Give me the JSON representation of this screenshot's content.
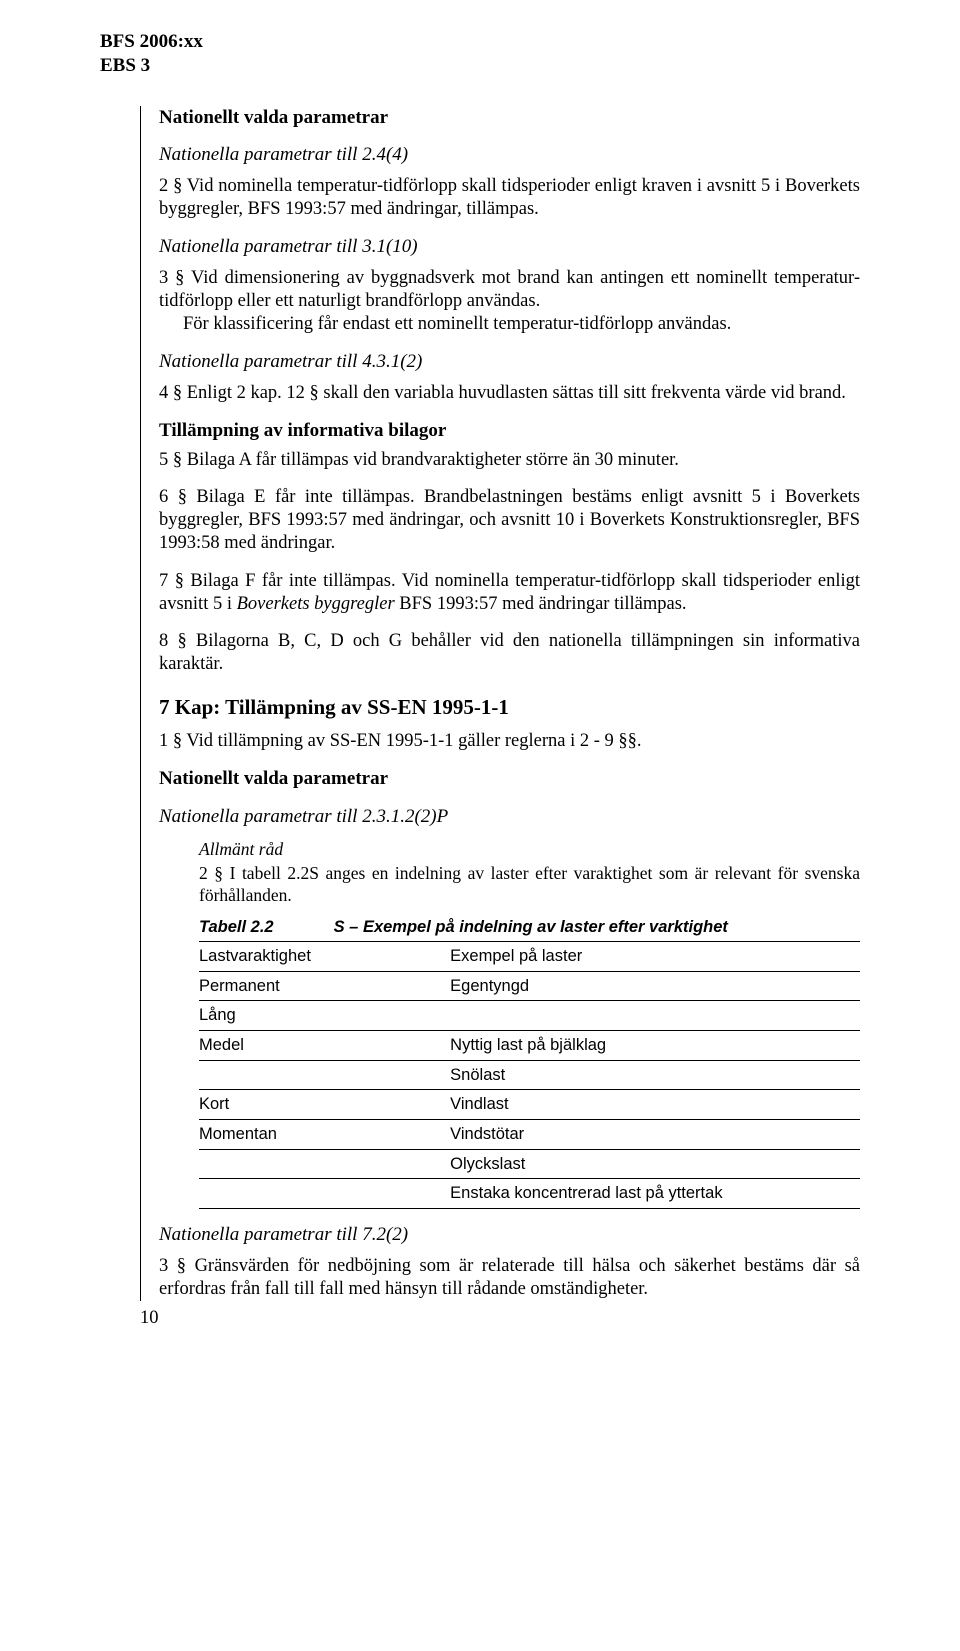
{
  "header": {
    "line1": "BFS 2006:xx",
    "line2": "EBS 3"
  },
  "sec1": {
    "title": "Nationellt valda parametrar",
    "sub1": "Nationella parametrar till 2.4(4)",
    "p1": "2 §   Vid nominella temperatur-tidförlopp skall tidsperioder enligt kraven i avsnitt 5 i Boverkets byggregler, BFS 1993:57 med ändringar, tillämpas.",
    "sub2": "Nationella parametrar till 3.1(10)",
    "p2a": "3 §   Vid dimensionering av byggnadsverk mot brand kan antingen ett nominellt temperatur-tidförlopp eller ett naturligt brandförlopp användas.",
    "p2b": "För klassificering får endast ett nominellt temperatur-tidförlopp användas.",
    "sub3": "Nationella parametrar till 4.3.1(2)",
    "p3": "4 §   Enligt 2 kap. 12 § skall den variabla huvudlasten sättas till sitt frekventa värde vid brand.",
    "bilagor_title": "Tillämpning av informativa bilagor",
    "p4": "5 §   Bilaga A får tillämpas vid brandvaraktigheter större än 30 minuter.",
    "p5": "6 § Bilaga E får inte tillämpas. Brandbelastningen bestäms enligt avsnitt 5 i Boverkets byggregler, BFS 1993:57 med ändringar, och avsnitt 10 i Boverkets Konstruktionsregler, BFS 1993:58 med ändringar.",
    "p6a": "7 §   Bilaga F får inte tillämpas. Vid nominella temperatur-tidförlopp skall tidsperioder enligt avsnitt 5 i ",
    "p6b": "Boverkets byggregler",
    "p6c": " BFS 1993:57 med ändringar tillämpas.",
    "p7": "8 §   Bilagorna B, C, D och G behåller vid den nationella tillämpningen sin informativa karaktär."
  },
  "sec2": {
    "chapter": "7 Kap: Tillämpning av SS-EN 1995-1-1",
    "p1": "1 §   Vid tillämpning av SS-EN 1995-1-1 gäller reglerna i 2 - 9 §§.",
    "title": "Nationellt valda parametrar",
    "sub1": "Nationella parametrar till 2.3.1.2(2)P",
    "advice_head": "Allmänt råd",
    "advice_text": "2 §   I tabell 2.2S anges en indelning av laster efter varaktighet som är relevant för svenska förhållanden.",
    "table": {
      "caption_label": "Tabell 2.2",
      "caption_text": "S – Exempel på indelning av laster efter varktighet",
      "col1": "Lastvaraktighet",
      "col2": "Exempel på laster",
      "rows": [
        {
          "a": "Permanent",
          "b": "Egentyngd"
        },
        {
          "a": "Lång",
          "b": ""
        },
        {
          "a": "Medel",
          "b": "Nyttig last på bjälklag"
        },
        {
          "a": "",
          "b": "Snölast",
          "cont": true
        },
        {
          "a": "Kort",
          "b": "Vindlast"
        },
        {
          "a": "Momentan",
          "b": "Vindstötar"
        },
        {
          "a": "",
          "b": "Olyckslast",
          "cont": true
        },
        {
          "a": "",
          "b": "Enstaka koncentrerad last på yttertak",
          "cont": true
        }
      ]
    },
    "sub2": "Nationella parametrar till 7.2(2)",
    "p_last": "3 §   Gränsvärden för nedböjning som är relaterade till hälsa och säkerhet bestäms där så erfordras från fall till fall med hänsyn till rådande omständigheter."
  },
  "page_number": "10"
}
